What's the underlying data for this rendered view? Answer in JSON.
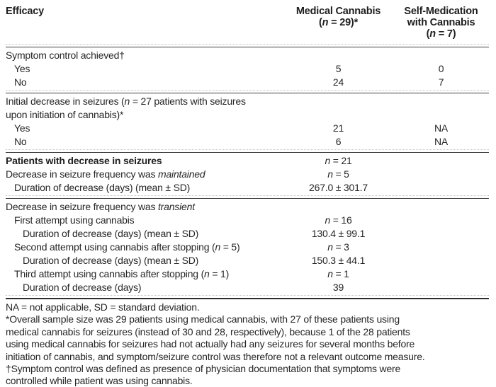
{
  "colors": {
    "background": "#ffffff",
    "text": "#262626",
    "bold_text": "#1e1e1e",
    "rule_solid": "#3e3e3e",
    "rule_dotted": "#c2c2c2"
  },
  "table": {
    "header": {
      "col1": [
        [
          {
            "t": "Efficacy"
          }
        ]
      ],
      "col2": [
        [
          {
            "t": "Medical Cannabis"
          }
        ],
        [
          {
            "t": "("
          },
          {
            "t": "n",
            "i": true
          },
          {
            "t": " = 29)*"
          }
        ]
      ],
      "col3": [
        [
          {
            "t": "Self-Medication"
          }
        ],
        [
          {
            "t": "with Cannabis"
          }
        ],
        [
          {
            "t": "("
          },
          {
            "t": "n",
            "i": true
          },
          {
            "t": " = 7)"
          }
        ]
      ]
    },
    "rows": [
      {
        "type": "rule"
      },
      {
        "indent": 0,
        "label": [
          {
            "t": "Symptom control achieved†"
          }
        ]
      },
      {
        "indent": 1,
        "label": [
          {
            "t": "Yes"
          }
        ],
        "col2": [
          {
            "t": "5"
          }
        ],
        "col3": [
          {
            "t": "0"
          }
        ]
      },
      {
        "indent": 1,
        "label": [
          {
            "t": "No"
          }
        ],
        "col2": [
          {
            "t": "24"
          }
        ],
        "col3": [
          {
            "t": "7"
          }
        ]
      },
      {
        "type": "rule"
      },
      {
        "indent": 0,
        "label": [
          {
            "t": "Initial decrease in seizures ("
          },
          {
            "t": "n",
            "i": true
          },
          {
            "t": " = 27 patients with seizures"
          }
        ],
        "label2": [
          {
            "t": "upon initiation of cannabis)*"
          }
        ]
      },
      {
        "indent": 1,
        "label": [
          {
            "t": "Yes"
          }
        ],
        "col2": [
          {
            "t": "21"
          }
        ],
        "col3": [
          {
            "t": "NA"
          }
        ]
      },
      {
        "indent": 1,
        "label": [
          {
            "t": "No"
          }
        ],
        "col2": [
          {
            "t": "6"
          }
        ],
        "col3": [
          {
            "t": "NA"
          }
        ]
      },
      {
        "type": "rule"
      },
      {
        "indent": 0,
        "bold": true,
        "label": [
          {
            "t": "Patients with decrease in seizures"
          }
        ],
        "col2": [
          {
            "t": "n",
            "i": true
          },
          {
            "t": " = 21"
          }
        ]
      },
      {
        "indent": 0,
        "label": [
          {
            "t": "Decrease in seizure frequency was "
          },
          {
            "t": "maintained",
            "i": true
          }
        ],
        "col2": [
          {
            "t": "n",
            "i": true
          },
          {
            "t": " = 5"
          }
        ]
      },
      {
        "indent": 1,
        "label": [
          {
            "t": "Duration of decrease (days) (mean ± SD)"
          }
        ],
        "col2": [
          {
            "t": "267.0 ± 301.7"
          }
        ]
      },
      {
        "type": "rule"
      },
      {
        "indent": 0,
        "label": [
          {
            "t": "Decrease in seizure frequency was "
          },
          {
            "t": "transient",
            "i": true
          }
        ]
      },
      {
        "indent": 1,
        "label": [
          {
            "t": "First attempt using cannabis"
          }
        ],
        "col2": [
          {
            "t": "n",
            "i": true
          },
          {
            "t": " = 16"
          }
        ]
      },
      {
        "indent": 2,
        "label": [
          {
            "t": "Duration of decrease (days) (mean ± SD)"
          }
        ],
        "col2": [
          {
            "t": "130.4 ± 99.1"
          }
        ]
      },
      {
        "indent": 1,
        "label": [
          {
            "t": "Second attempt using cannabis after stopping ("
          },
          {
            "t": "n",
            "i": true
          },
          {
            "t": " = 5)"
          }
        ],
        "col2": [
          {
            "t": "n",
            "i": true
          },
          {
            "t": " = 3"
          }
        ]
      },
      {
        "indent": 2,
        "label": [
          {
            "t": "Duration of decrease (days) (mean ± SD)"
          }
        ],
        "col2": [
          {
            "t": "150.3 ± 44.1"
          }
        ]
      },
      {
        "indent": 1,
        "label": [
          {
            "t": "Third attempt using cannabis after stopping ("
          },
          {
            "t": "n",
            "i": true
          },
          {
            "t": " = 1)"
          }
        ],
        "col2": [
          {
            "t": "n",
            "i": true
          },
          {
            "t": " = 1"
          }
        ]
      },
      {
        "indent": 2,
        "label": [
          {
            "t": "Duration of decrease (days)"
          }
        ],
        "col2": [
          {
            "t": "39"
          }
        ]
      },
      {
        "type": "rule",
        "heavy": true
      }
    ],
    "footnotes": [
      [
        "NA = not applicable, SD = standard deviation."
      ],
      [
        "*Overall sample size was 29 patients using medical cannabis, with 27 of these patients using",
        "medical cannabis for seizures (instead of 30 and 28, respectively), because 1 of the 28 patients",
        "using medical cannabis for seizures had not actually had any seizures for several months before",
        "initiation of cannabis, and symptom/seizure control was therefore not a relevant outcome measure."
      ],
      [
        "†Symptom control was defined as presence of physician documentation that symptoms were",
        "controlled while patient was using cannabis."
      ]
    ]
  }
}
